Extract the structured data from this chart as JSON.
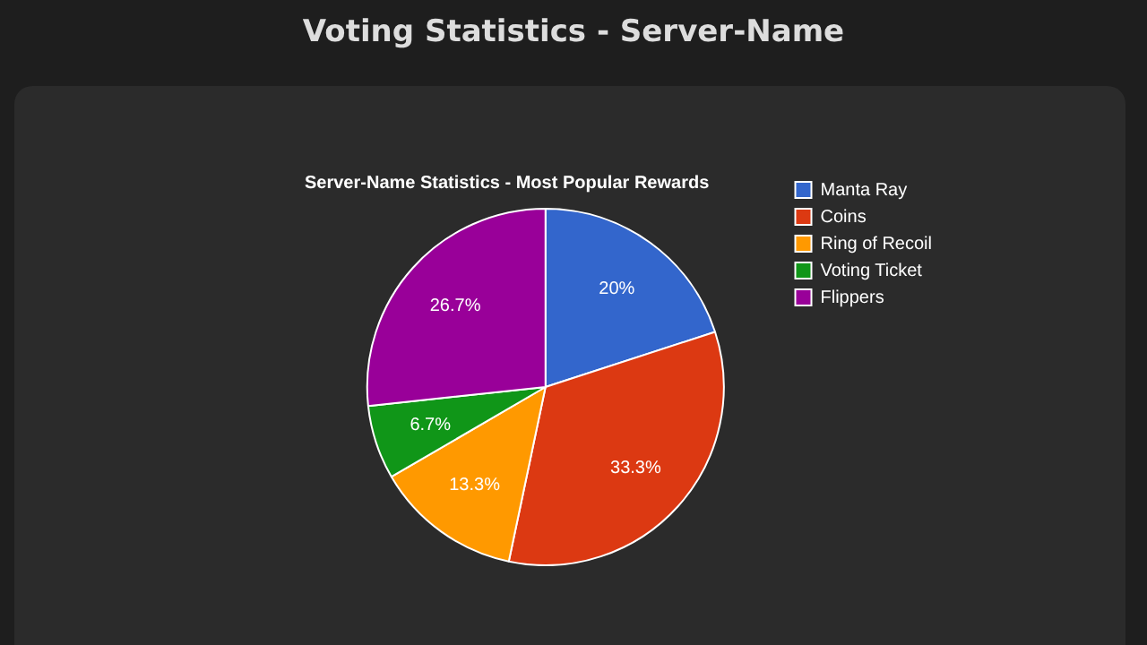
{
  "chart_data": {
    "type": "pie",
    "title": "Voting Statistics - Server-Name",
    "subtitle": "Server-Name Statistics - Most Popular Rewards",
    "categories": [
      "Manta Ray",
      "Coins",
      "Ring of Recoil",
      "Voting Ticket",
      "Flippers"
    ],
    "values": [
      20,
      33.3,
      13.3,
      6.7,
      26.7
    ],
    "value_labels": [
      "20%",
      "33.3%",
      "13.3%",
      "6.7%",
      "26.7%"
    ],
    "colors": [
      "#3366cc",
      "#dc3912",
      "#ff9900",
      "#109618",
      "#990099"
    ],
    "legend": "right"
  }
}
